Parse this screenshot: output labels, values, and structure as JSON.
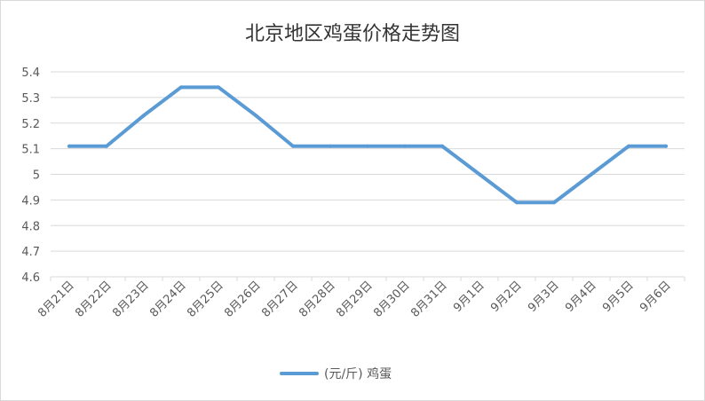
{
  "chart_data": {
    "type": "line",
    "title": "北京地区鸡蛋价格走势图",
    "xlabel": "",
    "ylabel": "",
    "categories": [
      "8月21日",
      "8月22日",
      "8月23日",
      "8月24日",
      "8月25日",
      "8月26日",
      "8月27日",
      "8月28日",
      "8月29日",
      "8月30日",
      "8月31日",
      "9月1日",
      "9月2日",
      "9月3日",
      "9月4日",
      "9月5日",
      "9月6日"
    ],
    "series": [
      {
        "name": "(元/斤) 鸡蛋",
        "color": "#5b9bd5",
        "values": [
          5.11,
          5.11,
          5.23,
          5.34,
          5.34,
          5.23,
          5.11,
          5.11,
          5.11,
          5.11,
          5.11,
          5.0,
          4.89,
          4.89,
          5.0,
          5.11,
          5.11
        ]
      }
    ],
    "ylim": [
      4.6,
      5.4
    ],
    "yticks": [
      "4.6",
      "4.7",
      "4.8",
      "4.9",
      "5",
      "5.1",
      "5.2",
      "5.3",
      "5.4"
    ],
    "grid": true,
    "legend_position": "bottom"
  }
}
